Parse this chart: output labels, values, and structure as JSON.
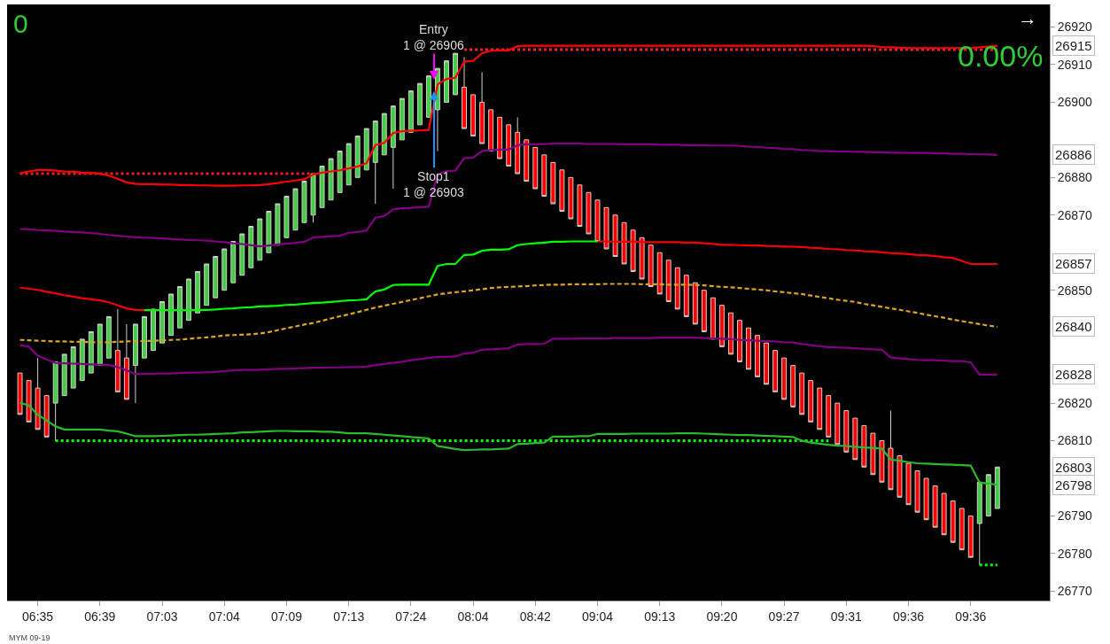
{
  "chart_data": {
    "type": "candlestick",
    "categories": [
      null,
      null,
      "06:35",
      null,
      null,
      null,
      null,
      null,
      null,
      "06:39",
      null,
      null,
      null,
      null,
      null,
      null,
      "07:03",
      null,
      null,
      null,
      null,
      null,
      null,
      "07:04",
      null,
      null,
      null,
      null,
      null,
      null,
      "07:09",
      null,
      null,
      null,
      null,
      null,
      null,
      "07:13",
      null,
      null,
      null,
      null,
      null,
      null,
      "07:24",
      null,
      null,
      null,
      null,
      null,
      null,
      "08:04",
      null,
      null,
      null,
      null,
      null,
      null,
      "08:42",
      null,
      null,
      null,
      null,
      null,
      null,
      "09:04",
      null,
      null,
      null,
      null,
      null,
      null,
      "09:13",
      null,
      null,
      null,
      null,
      null,
      null,
      "09:20",
      null,
      null,
      null,
      null,
      null,
      null,
      "09:27",
      null,
      null,
      null,
      null,
      null,
      null,
      "09:31",
      null,
      null,
      null,
      null,
      null,
      null,
      "09:36",
      null,
      null,
      null,
      null,
      null,
      null,
      "09:36",
      null,
      null,
      null
    ],
    "ohlc": [
      [
        26828,
        26828,
        26817,
        26817
      ],
      [
        26826,
        26826,
        26815,
        26815
      ],
      [
        26824,
        26832,
        26813,
        26813
      ],
      [
        26822,
        26822,
        26811,
        26811
      ],
      [
        26820,
        26831,
        26810,
        26831
      ],
      [
        26822,
        26833,
        26822,
        26833
      ],
      [
        26824,
        26835,
        26824,
        26835
      ],
      [
        26826,
        26837,
        26826,
        26837
      ],
      [
        26828,
        26839,
        26828,
        26839
      ],
      [
        26830,
        26841,
        26830,
        26841
      ],
      [
        26832,
        26843,
        26832,
        26843
      ],
      [
        26834,
        26845,
        26823,
        26823
      ],
      [
        26832,
        26841,
        26821,
        26821
      ],
      [
        26830,
        26841,
        26820,
        26841
      ],
      [
        26832,
        26843,
        26832,
        26843
      ],
      [
        26834,
        26845,
        26834,
        26845
      ],
      [
        26836,
        26847,
        26836,
        26847
      ],
      [
        26838,
        26849,
        26838,
        26849
      ],
      [
        26840,
        26851,
        26840,
        26851
      ],
      [
        26842,
        26853,
        26842,
        26853
      ],
      [
        26844,
        26855,
        26844,
        26855
      ],
      [
        26846,
        26857,
        26846,
        26857
      ],
      [
        26848,
        26859,
        26848,
        26859
      ],
      [
        26850,
        26861,
        26850,
        26861
      ],
      [
        26852,
        26863,
        26852,
        26863
      ],
      [
        26854,
        26865,
        26854,
        26865
      ],
      [
        26856,
        26867,
        26856,
        26867
      ],
      [
        26858,
        26869,
        26858,
        26869
      ],
      [
        26860,
        26871,
        26860,
        26871
      ],
      [
        26862,
        26873,
        26862,
        26873
      ],
      [
        26864,
        26875,
        26864,
        26875
      ],
      [
        26866,
        26877,
        26866,
        26877
      ],
      [
        26868,
        26879,
        26868,
        26879
      ],
      [
        26870,
        26881,
        26868,
        26881
      ],
      [
        26872,
        26883,
        26872,
        26883
      ],
      [
        26874,
        26885,
        26874,
        26885
      ],
      [
        26876,
        26887,
        26876,
        26887
      ],
      [
        26878,
        26889,
        26878,
        26889
      ],
      [
        26880,
        26891,
        26880,
        26891
      ],
      [
        26882,
        26893,
        26882,
        26893
      ],
      [
        26884,
        26895,
        26873,
        26895
      ],
      [
        26886,
        26897,
        26886,
        26897
      ],
      [
        26888,
        26899,
        26877,
        26899
      ],
      [
        26890,
        26901,
        26890,
        26901
      ],
      [
        26892,
        26903,
        26892,
        26903
      ],
      [
        26894,
        26905,
        26894,
        26905
      ],
      [
        26896,
        26907,
        26896,
        26907
      ],
      [
        26898,
        26909,
        26887,
        26909
      ],
      [
        26900,
        26911,
        26900,
        26911
      ],
      [
        26902,
        26913,
        26902,
        26913
      ],
      [
        26904,
        26912,
        26893,
        26893
      ],
      [
        26902,
        26902,
        26891,
        26891
      ],
      [
        26900,
        26908,
        26889,
        26889
      ],
      [
        26898,
        26898,
        26887,
        26887
      ],
      [
        26896,
        26896,
        26885,
        26885
      ],
      [
        26894,
        26894,
        26883,
        26883
      ],
      [
        26892,
        26896,
        26881,
        26881
      ],
      [
        26890,
        26890,
        26879,
        26879
      ],
      [
        26888,
        26888,
        26877,
        26877
      ],
      [
        26886,
        26886,
        26875,
        26875
      ],
      [
        26884,
        26884,
        26873,
        26873
      ],
      [
        26882,
        26882,
        26871,
        26871
      ],
      [
        26880,
        26880,
        26869,
        26869
      ],
      [
        26878,
        26878,
        26867,
        26867
      ],
      [
        26876,
        26876,
        26865,
        26865
      ],
      [
        26874,
        26874,
        26863,
        26863
      ],
      [
        26872,
        26872,
        26861,
        26861
      ],
      [
        26870,
        26870,
        26859,
        26859
      ],
      [
        26868,
        26868,
        26857,
        26857
      ],
      [
        26866,
        26866,
        26855,
        26855
      ],
      [
        26864,
        26864,
        26853,
        26853
      ],
      [
        26862,
        26862,
        26851,
        26851
      ],
      [
        26860,
        26860,
        26849,
        26849
      ],
      [
        26858,
        26858,
        26847,
        26847
      ],
      [
        26856,
        26856,
        26845,
        26845
      ],
      [
        26854,
        26854,
        26843,
        26843
      ],
      [
        26852,
        26852,
        26841,
        26841
      ],
      [
        26850,
        26850,
        26839,
        26839
      ],
      [
        26848,
        26848,
        26837,
        26837
      ],
      [
        26846,
        26846,
        26835,
        26835
      ],
      [
        26844,
        26844,
        26833,
        26833
      ],
      [
        26842,
        26842,
        26831,
        26831
      ],
      [
        26840,
        26840,
        26829,
        26829
      ],
      [
        26838,
        26838,
        26827,
        26827
      ],
      [
        26836,
        26836,
        26825,
        26825
      ],
      [
        26834,
        26834,
        26823,
        26823
      ],
      [
        26832,
        26832,
        26821,
        26821
      ],
      [
        26830,
        26830,
        26819,
        26819
      ],
      [
        26828,
        26828,
        26817,
        26817
      ],
      [
        26826,
        26826,
        26815,
        26815
      ],
      [
        26824,
        26824,
        26813,
        26813
      ],
      [
        26822,
        26822,
        26811,
        26811
      ],
      [
        26820,
        26820,
        26809,
        26809
      ],
      [
        26818,
        26818,
        26807,
        26807
      ],
      [
        26816,
        26816,
        26805,
        26805
      ],
      [
        26814,
        26814,
        26803,
        26803
      ],
      [
        26812,
        26812,
        26801,
        26801
      ],
      [
        26810,
        26810,
        26799,
        26799
      ],
      [
        26808,
        26818,
        26797,
        26797
      ],
      [
        26806,
        26806,
        26795,
        26795
      ],
      [
        26804,
        26804,
        26793,
        26793
      ],
      [
        26802,
        26802,
        26791,
        26791
      ],
      [
        26800,
        26800,
        26789,
        26789
      ],
      [
        26798,
        26798,
        26787,
        26787
      ],
      [
        26796,
        26796,
        26785,
        26785
      ],
      [
        26794,
        26794,
        26783,
        26783
      ],
      [
        26792,
        26792,
        26781,
        26781
      ],
      [
        26790,
        26790,
        26779,
        26779
      ],
      [
        26788,
        26799,
        26777,
        26799
      ],
      [
        26790,
        26801,
        26790,
        26801
      ],
      [
        26792,
        26803,
        26792,
        26803
      ]
    ],
    "colors": [
      "#ff0000",
      "#ff0000",
      "#ff0000",
      "#ff0000",
      "#44cc44",
      "#44cc44",
      "#44cc44",
      "#44cc44",
      "#44cc44",
      "#44cc44",
      "#44cc44",
      "#ff0000",
      "#ff0000",
      "#44cc44",
      "#44cc44",
      "#44cc44",
      "#44cc44",
      "#44cc44",
      "#44cc44",
      "#44cc44",
      "#44cc44",
      "#44cc44",
      "#44cc44",
      "#44cc44",
      "#44cc44",
      "#44cc44",
      "#44cc44",
      "#44cc44",
      "#44cc44",
      "#44cc44",
      "#44cc44",
      "#44cc44",
      "#44cc44",
      "#44cc44",
      "#44cc44",
      "#44cc44",
      "#44cc44",
      "#44cc44",
      "#44cc44",
      "#44cc44",
      "#44cc44",
      "#44cc44",
      "#44cc44",
      "#44cc44",
      "#44cc44",
      "#44cc44",
      "#44cc44",
      "#44cc44",
      "#44cc44",
      "#44cc44",
      "#ff0000",
      "#ff0000",
      "#ff0000",
      "#ff0000",
      "#ff0000",
      "#ff0000",
      "#ff0000",
      "#ff0000",
      "#ff0000",
      "#ff0000",
      "#ff0000",
      "#ff0000",
      "#ff0000",
      "#ff0000",
      "#ff0000",
      "#ff0000",
      "#ff0000",
      "#ff0000",
      "#ff0000",
      "#ff0000",
      "#ff0000",
      "#ff0000",
      "#ff0000",
      "#ff0000",
      "#ff0000",
      "#ff0000",
      "#ff0000",
      "#ff0000",
      "#ff0000",
      "#ff0000",
      "#ff0000",
      "#ff0000",
      "#ff0000",
      "#ff0000",
      "#ff0000",
      "#ff0000",
      "#ff0000",
      "#ff0000",
      "#ff0000",
      "#ff0000",
      "#ff0000",
      "#ff0000",
      "#ff0000",
      "#ff0000",
      "#ff0000",
      "#ff0000",
      "#ff0000",
      "#ff0000",
      "#ff0000",
      "#ff0000",
      "#ff0000",
      "#ff0000",
      "#ff0000",
      "#ff0000",
      "#ff0000",
      "#ff0000",
      "#ff0000",
      "#ff0000",
      "#44cc44",
      "#44cc44",
      "#44cc44"
    ],
    "series": [
      {
        "type": "line",
        "color": "#e8202a",
        "line_style": "dotted",
        "values": [
          26881,
          26881,
          26881,
          26881,
          26881,
          26881,
          26881,
          26881,
          26881,
          26881,
          26881,
          26881,
          26881,
          26881,
          26881,
          26881,
          26881,
          26881,
          26881,
          26881,
          26881,
          26881,
          26881,
          26881,
          26881,
          26881,
          26881,
          26881,
          26881,
          26881,
          26881,
          26881,
          26881,
          26881,
          null,
          null,
          null,
          null,
          null,
          null,
          null,
          null,
          null,
          null,
          null,
          null,
          null,
          null,
          null,
          null,
          26914,
          26914,
          26914,
          26914,
          26914,
          26914,
          26914,
          26914,
          26914,
          26914,
          26914,
          26914,
          26914,
          26914,
          26914,
          26914,
          26914,
          26914,
          26914,
          26914,
          26914,
          26914,
          26914,
          26914,
          26914,
          26914,
          26914,
          26914,
          26914,
          26914,
          26914,
          26914,
          26914,
          26914,
          26914,
          26914,
          26914,
          26914,
          26914,
          26914,
          26914,
          26914,
          26914,
          26914,
          26914,
          26914,
          26914,
          26914,
          26914,
          26914,
          26914,
          26914,
          26914,
          26914,
          26914,
          26914,
          26914,
          26914,
          26914,
          26914,
          26914
        ]
      },
      {
        "type": "line",
        "color": "#00ff00",
        "line_style": "dotted",
        "values": [
          null,
          null,
          null,
          null,
          26810,
          26810,
          26810,
          26810,
          26810,
          26810,
          26810,
          26810,
          26810,
          26810,
          26810,
          26810,
          26810,
          26810,
          26810,
          26810,
          26810,
          26810,
          26810,
          26810,
          26810,
          26810,
          26810,
          26810,
          26810,
          26810,
          26810,
          26810,
          26810,
          26810,
          26810,
          26810,
          26810,
          26810,
          26810,
          26810,
          26810,
          26810,
          26810,
          26810,
          26810,
          26810,
          26810,
          26810,
          26810,
          26810,
          26810,
          26810,
          26810,
          26810,
          26810,
          26810,
          26810,
          26810,
          26810,
          26810,
          26810,
          26810,
          26810,
          26810,
          26810,
          26810,
          26810,
          26810,
          26810,
          26810,
          26810,
          26810,
          26810,
          26810,
          26810,
          26810,
          26810,
          26810,
          26810,
          26810,
          26810,
          26810,
          26810,
          26810,
          26810,
          26810,
          26810,
          26810,
          26810,
          26810,
          26810,
          26810,
          null,
          null,
          null,
          null,
          null,
          null,
          null,
          null,
          null,
          null,
          null,
          null,
          null,
          null,
          null,
          null,
          26777,
          26777,
          26777
        ]
      },
      {
        "type": "line",
        "color": "#ff0000",
        "line_style": "solid",
        "values": [
          26881.1,
          26881.6,
          26882,
          26882,
          26881.8,
          26881.6,
          26881.5,
          26881.3,
          26881.2,
          26881,
          26880.5,
          26879.6,
          26878.7,
          26878.3,
          26878.2,
          26878.2,
          26878.1,
          26878.1,
          26878,
          26878,
          26877.9,
          26877.9,
          26877.8,
          26877.8,
          26877.8,
          26877.9,
          26877.9,
          26878,
          26878.2,
          26878.5,
          26878.9,
          26879.2,
          26879.5,
          26880.8,
          26881.3,
          26881.6,
          26881.9,
          26882.4,
          26882.9,
          26883.8,
          26888.6,
          26889.2,
          26891.8,
          26892.3,
          26892.4,
          26892.5,
          26892.6,
          26904.7,
          26906.2,
          26906.5,
          26910.8,
          26911,
          26913,
          26913.7,
          26913.8,
          26913.8,
          26914.9,
          26915,
          26915,
          26915,
          26915,
          26915,
          26915,
          26915,
          26915,
          26915,
          26915,
          26915,
          26915,
          26915,
          26915,
          26915,
          26915,
          26915,
          26915,
          26915,
          26915,
          26915,
          26915,
          26915,
          26915,
          26915,
          26915,
          26915,
          26915,
          26915,
          26915,
          26915,
          26915,
          26915,
          26915,
          26915,
          26915,
          26915,
          26915,
          26915,
          26914.9,
          26914.7,
          26914.6,
          26914.5,
          26914.4,
          26914.4,
          26914.4,
          26914.4,
          26914.4,
          26914.4,
          26914.4,
          26914.4,
          26914.6,
          26914.8,
          26915
        ]
      },
      {
        "type": "line",
        "color": "#800080",
        "line_style": "solid",
        "values": [
          26866.3,
          26866.2,
          26866,
          26865.9,
          26865.8,
          26865.6,
          26865.5,
          26865.4,
          26865.2,
          26865,
          26864.7,
          26864.5,
          26864.3,
          26864.1,
          26864,
          26863.9,
          26863.8,
          26863.6,
          26863.5,
          26863.4,
          26863.3,
          26863.2,
          26863,
          26862.8,
          26862.5,
          26862.3,
          26862,
          26861.7,
          26861.9,
          26862.2,
          26862.4,
          26862.6,
          26862.9,
          26864,
          26864.2,
          26864.4,
          26864.5,
          26865.3,
          26865.5,
          26865.9,
          26869.3,
          26869.7,
          26871.5,
          26871.8,
          26871.9,
          26872.1,
          26872.2,
          26880.8,
          26881.7,
          26881.8,
          26885.1,
          26885.3,
          26887,
          26887.3,
          26887.4,
          26887.4,
          26888.6,
          26888.8,
          26888.8,
          26888.9,
          26889,
          26889,
          26889,
          26889,
          26888.9,
          26888.9,
          26888.9,
          26888.9,
          26888.8,
          26888.8,
          26888.8,
          26888.8,
          26888.7,
          26888.7,
          26888.7,
          26888.6,
          26888.6,
          26888.6,
          26888.5,
          26888.5,
          26888.5,
          26888.4,
          26888.2,
          26888.1,
          26887.9,
          26887.8,
          26887.6,
          26887.5,
          26887.3,
          26887.2,
          26887,
          26887,
          26886.9,
          26886.9,
          26886.8,
          26886.8,
          26886.7,
          26886.7,
          26886.6,
          26886.6,
          26886.5,
          26886.5,
          26886.5,
          26886.4,
          26886.4,
          26886.3,
          26886.3,
          26886.2,
          26886.2,
          26886.1,
          26886
        ]
      },
      {
        "type": "line",
        "color": "#f20000",
        "line_style": "solid",
        "values": [
          26850.7,
          26850.4,
          26850.1,
          26849.6,
          26849.2,
          26848.7,
          26848.3,
          26847.9,
          26847.6,
          26847.3,
          26846.8,
          26846,
          26845.2,
          26844.8,
          26844.7,
          null,
          null,
          null,
          null,
          null,
          null,
          null,
          null,
          null,
          null,
          null,
          null,
          null,
          null,
          null,
          null,
          null,
          null,
          null,
          null,
          null,
          null,
          null,
          null,
          null,
          null,
          null,
          null,
          null,
          null,
          null,
          null,
          null,
          null,
          null,
          null,
          null,
          null,
          null,
          null,
          null,
          null,
          null,
          null,
          null,
          null,
          null,
          null,
          null,
          null,
          26863,
          26863,
          26862.9,
          26862.9,
          26862.9,
          26862.8,
          26862.8,
          26862.8,
          26862.8,
          26862.8,
          26862.7,
          26862.7,
          26862.5,
          26862.3,
          26862.1,
          26862.1,
          26862,
          26861.9,
          26861.9,
          26861.8,
          26861.7,
          26861.6,
          26861.6,
          26861.5,
          26861.3,
          26861.2,
          26861,
          26860.9,
          26860.7,
          26860.6,
          26860.4,
          26860.3,
          26860.1,
          26859.9,
          26859.8,
          26859.6,
          26859.4,
          26859.3,
          26859.1,
          26858.8,
          26858.6,
          26857.8,
          26857,
          26857,
          26857,
          26857
        ]
      },
      {
        "type": "line",
        "color": "#00ff00",
        "line_style": "solid",
        "values": [
          null,
          null,
          null,
          null,
          null,
          null,
          null,
          null,
          null,
          null,
          null,
          null,
          null,
          null,
          26844.7,
          26844.7,
          26844.7,
          26844.7,
          26844.7,
          26844.7,
          26844.7,
          26844.8,
          26844.9,
          26845.1,
          26845.2,
          26845.4,
          26845.5,
          26845.7,
          26845.8,
          26845.9,
          26846.1,
          26846.2,
          26846.4,
          26846.6,
          26846.7,
          26846.9,
          26847.1,
          26847.3,
          26847.4,
          26847.6,
          26849.7,
          26850.2,
          26851.4,
          26851.5,
          26851.5,
          26851.5,
          26851.5,
          26856.5,
          26857,
          26857,
          26859.4,
          26859.5,
          26860.5,
          26860.8,
          26860.8,
          26860.9,
          26862,
          26862.3,
          26862.5,
          26862.7,
          26862.9,
          26862.9,
          26863,
          26863,
          26863,
          26863,
          null,
          null,
          null,
          null,
          null,
          null,
          null,
          null,
          null,
          null,
          null,
          null,
          null,
          null,
          null,
          null,
          null,
          null,
          null,
          null,
          null,
          null,
          null,
          null,
          null,
          null,
          null,
          null,
          null,
          null,
          null,
          null,
          null,
          null,
          null,
          null,
          null,
          null,
          null,
          null,
          null,
          null,
          null,
          null,
          null
        ]
      },
      {
        "type": "line",
        "color": "#daa520",
        "line_style": "dashed",
        "values": [
          26836.8,
          26836.7,
          26836.6,
          26836.5,
          26836.4,
          26836.4,
          26836.3,
          26836.3,
          26836.2,
          26836.2,
          26836.2,
          26836.3,
          26836.4,
          26836.5,
          26836.5,
          26836.6,
          26836.7,
          26836.8,
          26836.9,
          26837.1,
          26837.3,
          26837.5,
          26837.7,
          26838,
          26838.1,
          26838.2,
          26838.3,
          26838.5,
          26838.9,
          26839.4,
          26839.9,
          26840.4,
          26840.9,
          26841.3,
          26841.9,
          26842.5,
          26843.1,
          26843.6,
          26844.2,
          26844.8,
          26845.4,
          26845.9,
          26846.4,
          26846.9,
          26847.4,
          26847.9,
          26848.4,
          26848.9,
          26849.2,
          26849.5,
          26849.7,
          26850,
          26850.3,
          26850.6,
          26850.8,
          26850.9,
          26851,
          26851.1,
          26851.3,
          26851.4,
          26851.5,
          26851.5,
          26851.6,
          26851.6,
          26851.6,
          26851.6,
          26851.7,
          26851.7,
          26851.7,
          26851.7,
          26851.6,
          26851.6,
          26851.6,
          26851.5,
          26851.5,
          26851.5,
          26851.4,
          26851.3,
          26851.1,
          26850.9,
          26850.8,
          26850.6,
          26850.4,
          26850.2,
          26850,
          26849.7,
          26849.5,
          26849.2,
          26849,
          26848.6,
          26848.2,
          26847.9,
          26847.5,
          26847.2,
          26846.9,
          26846.4,
          26846,
          26845.6,
          26845.2,
          26844.8,
          26844.4,
          26844,
          26843.5,
          26843.1,
          26842.7,
          26842.2,
          26841.8,
          26841.4,
          26841,
          26840.6,
          26840.3
        ]
      },
      {
        "type": "line",
        "color": "#800080",
        "line_style": "solid",
        "values": [
          26835.4,
          26835,
          26832.6,
          26831.6,
          26830.7,
          26830.6,
          26830.5,
          26830.4,
          26830.3,
          26830.2,
          26830.1,
          26829.6,
          26828.7,
          26827.7,
          26827.8,
          26827.8,
          26827.9,
          26827.9,
          26828,
          26828.1,
          26828.1,
          26828.2,
          26828.3,
          26828.5,
          26828.7,
          26828.8,
          26828.8,
          26828.9,
          26829,
          26829.1,
          26829.1,
          26829.2,
          26829.3,
          26829.4,
          26829.4,
          26829.5,
          26829.5,
          26829.6,
          26829.6,
          26829.7,
          26830.1,
          26830.4,
          26830.7,
          26831,
          26831.4,
          26831.7,
          26832,
          26832.3,
          26832.3,
          26832.4,
          26833.2,
          26833.4,
          26834.2,
          26834.3,
          26834.4,
          26834.6,
          26835.6,
          26835.7,
          26835.7,
          26835.8,
          26837.1,
          26837.1,
          26837.1,
          26837.2,
          26837.2,
          26837.2,
          26837.2,
          26837.3,
          26837.3,
          26837.3,
          26837.3,
          26837.3,
          26837.4,
          26837.4,
          26837.4,
          26837.4,
          26837.4,
          26837.3,
          26837.2,
          26837.1,
          26837,
          26836.8,
          26836.7,
          26836.6,
          26836.5,
          26836.4,
          26836.2,
          26836.1,
          26835.7,
          26835.4,
          26835.1,
          26834.9,
          26834.8,
          26834.7,
          26834.6,
          26834.4,
          26834.3,
          26834.2,
          26832.1,
          26831.9,
          26831.7,
          26831.5,
          26831.4,
          26831.4,
          26831.3,
          26831.2,
          26831.2,
          26830.8,
          26827.6,
          26827.6,
          26827.6
        ]
      },
      {
        "type": "line",
        "color": "#2eb82e",
        "line_style": "solid",
        "values": [
          26820.1,
          26819.4,
          26816.9,
          26815.4,
          26813.8,
          26813,
          26813,
          26813,
          26813,
          26813,
          26812.7,
          26812.5,
          26811.9,
          26811.2,
          26811.2,
          26811.2,
          26811.3,
          26811.4,
          26811.5,
          26811.6,
          26811.6,
          26811.7,
          26811.8,
          26811.9,
          26812,
          26812.2,
          26812.3,
          26812.4,
          26812.5,
          26812.6,
          26812.6,
          26812.5,
          26812.5,
          26812.5,
          26812.4,
          26812.4,
          26812.2,
          26812,
          26812,
          26812,
          26811.8,
          26811.6,
          26811.4,
          26811.2,
          26811,
          26810.8,
          26810.6,
          26808.6,
          26808.2,
          26807.8,
          26807.5,
          26807.6,
          26807.7,
          26807.7,
          26807.8,
          26807.9,
          26809.1,
          26809.2,
          26809.4,
          26809.5,
          26811.1,
          26811.1,
          26811.1,
          26811.2,
          26811.2,
          26811.8,
          26811.8,
          26811.8,
          26811.8,
          26811.9,
          26811.9,
          26811.9,
          26811.9,
          26811.9,
          26812,
          26812,
          26812,
          26811.9,
          26811.8,
          26811.7,
          26811.6,
          26811.5,
          26811.5,
          26811.4,
          26811.3,
          26811.2,
          26811.1,
          26811,
          26810,
          26809.5,
          26809.2,
          26808.9,
          26808.7,
          26808.6,
          26808.4,
          26808.2,
          26808.1,
          26807.9,
          26805,
          26804.7,
          26804.3,
          26804,
          26803.9,
          26803.8,
          26803.7,
          26803.6,
          26803.5,
          26803.4,
          26798.9,
          26798.6,
          26798.3
        ]
      }
    ],
    "ylim": [
      26767.5,
      26926
    ],
    "yticks": [
      26770,
      26780,
      26790,
      26810,
      26820,
      26850,
      26870,
      26880,
      26900,
      26910,
      26920
    ],
    "annotations": [
      "0",
      "0.00%",
      "→",
      {
        "text": "Entry\n1 @ 26906",
        "y": 26906
      },
      {
        "text": "Stop1\n1 @ 26903",
        "y": 26903
      },
      "26915",
      "26886",
      "26857",
      "26840",
      "26828",
      "26803",
      "26798",
      "MYM 09-19"
    ]
  }
}
